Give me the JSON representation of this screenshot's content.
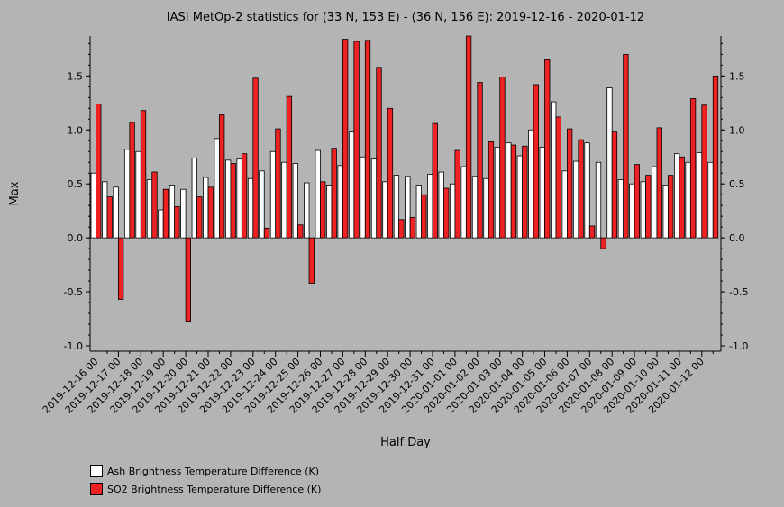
{
  "chart_data": {
    "type": "bar",
    "title": "IASI MetOp-2 statistics for (33 N, 153 E) - (36 N, 156 E): 2019-12-16 - 2020-01-12",
    "xlabel": "Half Day",
    "ylabel": "Max",
    "ylim": [
      -1.05,
      1.87
    ],
    "yticks": [
      -1.0,
      -0.5,
      0.0,
      0.5,
      1.0,
      1.5
    ],
    "ytick_labels": [
      "-1.0",
      "-0.5",
      "0.0",
      "0.5",
      "1.0",
      "1.5"
    ],
    "tick_labels": [
      "2019-12-16 00",
      "2019-12-17 00",
      "2019-12-18 00",
      "2019-12-19 00",
      "2019-12-20 00",
      "2019-12-21 00",
      "2019-12-22 00",
      "2019-12-23 00",
      "2019-12-24 00",
      "2019-12-25 00",
      "2019-12-26 00",
      "2019-12-27 00",
      "2019-12-28 00",
      "2019-12-29 00",
      "2019-12-30 00",
      "2019-12-31 00",
      "2020-01-01 00",
      "2020-01-02 00",
      "2020-01-03 00",
      "2020-01-04 00",
      "2020-01-05 00",
      "2020-01-06 00",
      "2020-01-07 00",
      "2020-01-08 00",
      "2020-01-09 00",
      "2020-01-10 00",
      "2020-01-11 00",
      "2020-01-12 00"
    ],
    "grid": false,
    "legend_position": "bottom-left",
    "series": [
      {
        "name": "Ash Brightness Temperature Difference (K)",
        "color": "#ffffff",
        "values": [
          0.6,
          0.52,
          0.47,
          0.82,
          0.8,
          0.54,
          0.26,
          0.49,
          0.45,
          0.74,
          0.56,
          0.92,
          0.72,
          0.73,
          0.55,
          0.62,
          0.8,
          0.7,
          0.69,
          0.51,
          0.81,
          0.49,
          0.67,
          0.98,
          0.75,
          0.73,
          0.52,
          0.58,
          0.57,
          0.49,
          0.59,
          0.61,
          0.5,
          0.66,
          0.57,
          0.55,
          0.84,
          0.88,
          0.76,
          1.0,
          0.84,
          1.26,
          0.62,
          0.71,
          0.88,
          0.7,
          1.39,
          0.54,
          0.5,
          0.52,
          0.66,
          0.49,
          0.78,
          0.7,
          0.79,
          0.7
        ]
      },
      {
        "name": "SO2 Brightness Temperature Difference (K)",
        "color": "#ee2222",
        "values": [
          1.24,
          0.38,
          -0.57,
          1.07,
          1.18,
          0.61,
          0.45,
          0.29,
          -0.78,
          0.38,
          0.47,
          1.14,
          0.69,
          0.78,
          1.48,
          0.09,
          1.01,
          1.31,
          0.12,
          -0.42,
          0.52,
          0.83,
          1.84,
          1.82,
          1.83,
          1.58,
          1.2,
          0.17,
          0.19,
          0.4,
          1.06,
          0.46,
          0.81,
          1.87,
          1.44,
          0.89,
          1.49,
          0.86,
          0.85,
          1.42,
          1.65,
          1.12,
          1.01,
          0.91,
          0.11,
          -0.1,
          0.98,
          1.7,
          0.68,
          0.58,
          1.02,
          0.58,
          0.75,
          1.29,
          1.23,
          1.5
        ]
      }
    ]
  },
  "legend": {
    "items": [
      {
        "label": "Ash Brightness Temperature Difference (K)",
        "color": "#ffffff"
      },
      {
        "label": "SO2 Brightness Temperature Difference (K)",
        "color": "#ee2222"
      }
    ]
  }
}
